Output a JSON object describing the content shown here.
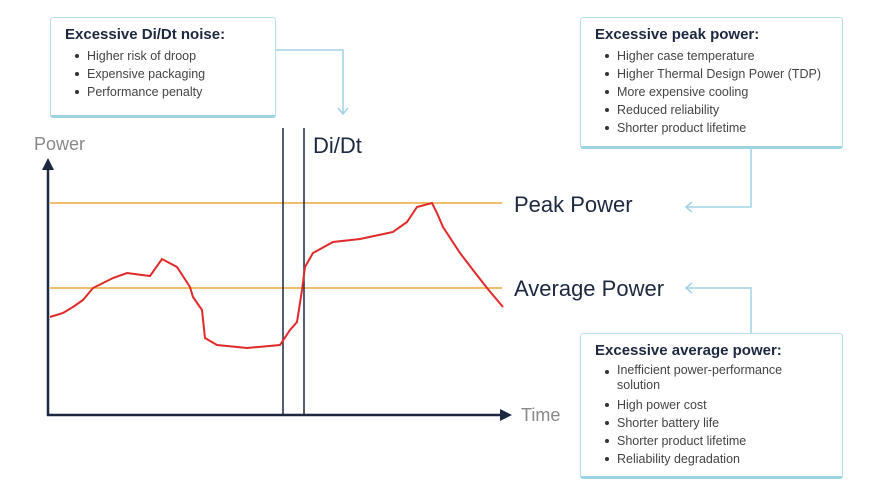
{
  "boxes": {
    "didt": {
      "title": "Excessive Di/Dt noise:",
      "items": [
        "Higher risk of droop",
        "Expensive packaging",
        "Performance penalty"
      ]
    },
    "peak": {
      "title": "Excessive peak power:",
      "items": [
        "Higher case temperature",
        "Higher Thermal Design Power (TDP)",
        "More expensive cooling",
        "Reduced reliability",
        "Shorter product lifetime"
      ]
    },
    "average": {
      "title": "Excessive average power:",
      "items": [
        "Inefficient power-performance solution",
        "High power cost",
        "Shorter battery life",
        "Shorter product lifetime",
        "Reliability degradation"
      ]
    }
  },
  "labels": {
    "y_axis": "Power",
    "x_axis": "Time",
    "didt": "Di/Dt",
    "peak_power": "Peak Power",
    "average_power": "Average Power"
  },
  "colors": {
    "curve": "#e02a2a",
    "threshold": "#e8a838",
    "axis": "#1c2840",
    "connector": "#9fd3e4"
  }
}
